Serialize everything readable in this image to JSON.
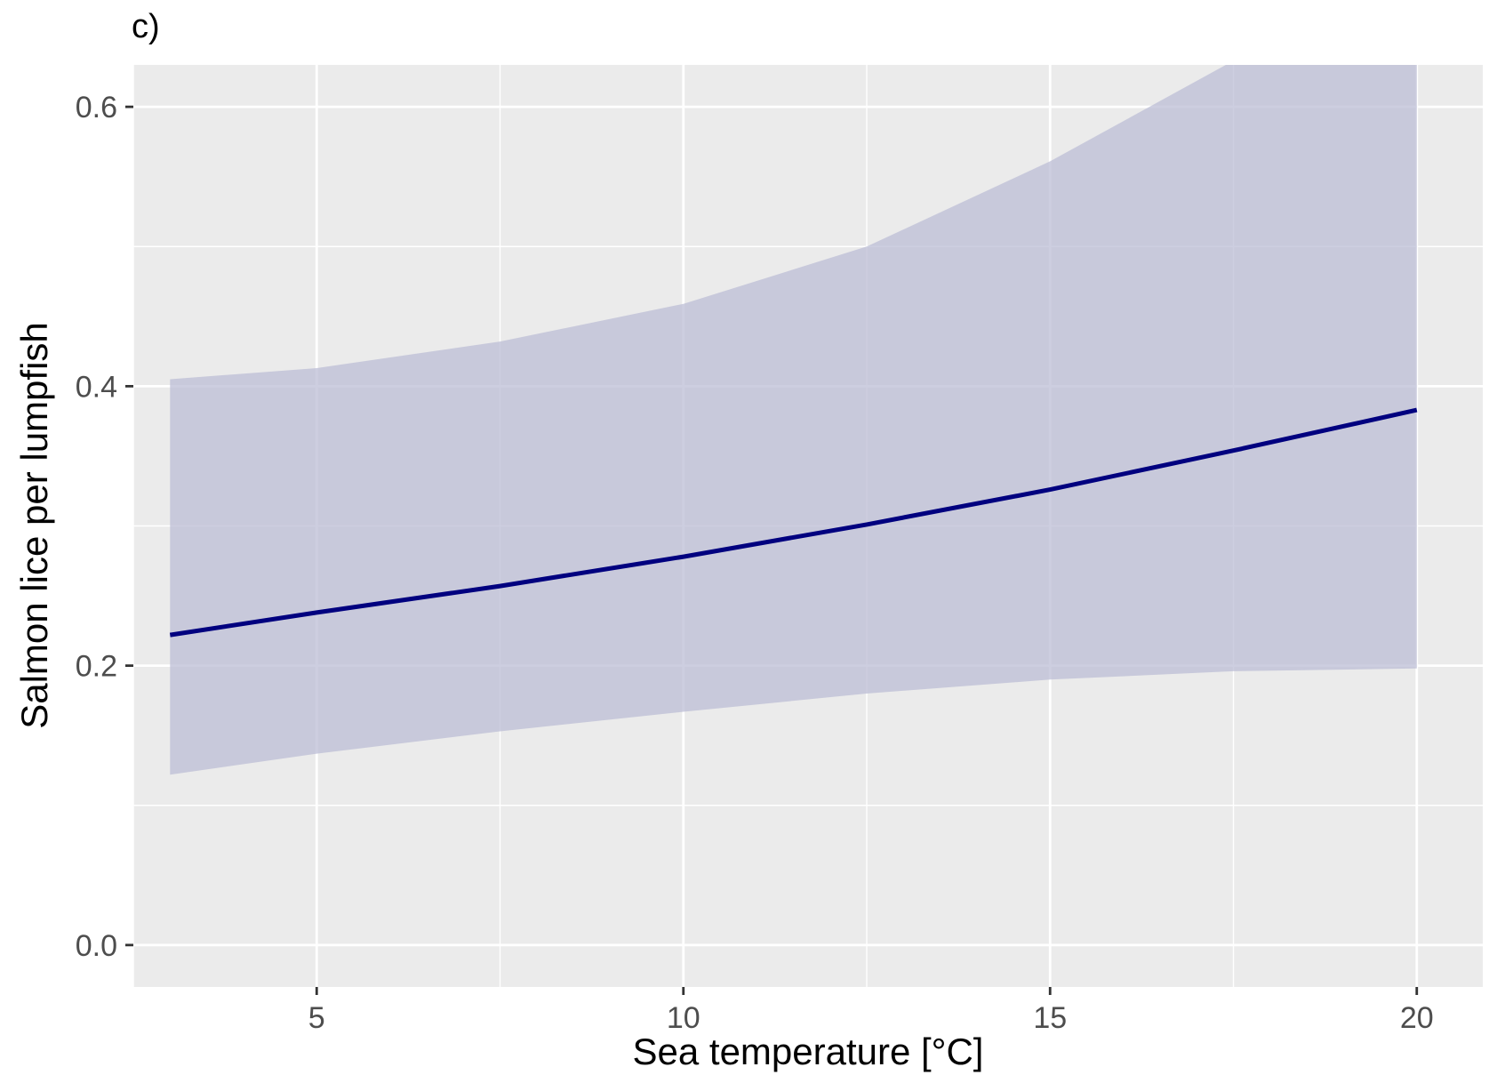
{
  "panel_label": "c)",
  "chart_data": {
    "type": "line",
    "title": "c)",
    "xlabel": "Sea temperature [°C]",
    "ylabel": "Salmon lice per lumpfish",
    "xlim": [
      2.5,
      20.9
    ],
    "ylim": [
      -0.03,
      0.63
    ],
    "x_ticks": [
      5,
      10,
      15,
      20
    ],
    "x_tick_labels": [
      "5",
      "10",
      "15",
      "20"
    ],
    "x_minor_ticks": [
      2.5,
      7.5,
      12.5,
      17.5
    ],
    "y_ticks": [
      0.0,
      0.2,
      0.4,
      0.6
    ],
    "y_tick_labels": [
      "0.0",
      "0.2",
      "0.4",
      "0.6"
    ],
    "y_minor_ticks": [
      0.1,
      0.3,
      0.5
    ],
    "grid": true,
    "legend": "none",
    "colors": {
      "panel_background": "#ebebeb",
      "grid": "#ffffff",
      "line": "#00007f",
      "ribbon": "#bcbdd6"
    },
    "series": [
      {
        "x": [
          3,
          5,
          7.5,
          10,
          12.5,
          15,
          17.5,
          20
        ],
        "y": [
          0.222,
          0.238,
          0.257,
          0.278,
          0.301,
          0.326,
          0.354,
          0.383
        ],
        "ymin": [
          0.122,
          0.137,
          0.153,
          0.167,
          0.18,
          0.19,
          0.196,
          0.198
        ],
        "ymax": [
          0.405,
          0.413,
          0.432,
          0.459,
          0.5,
          0.561,
          0.633,
          0.74
        ]
      }
    ]
  }
}
